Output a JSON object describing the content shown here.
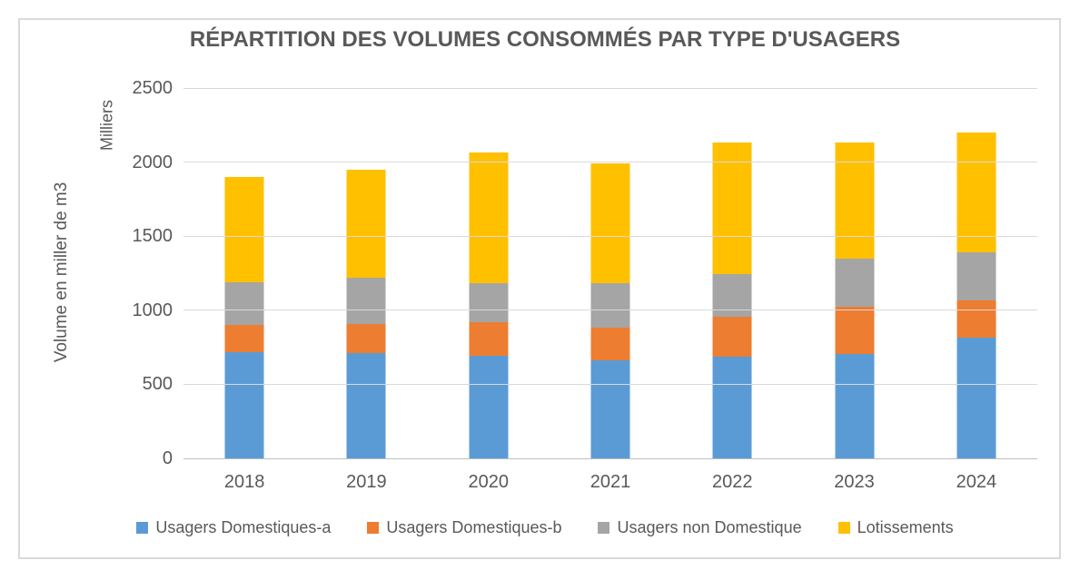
{
  "window": {
    "background": "#ffffff",
    "frame_border_color": "#d9d9d9",
    "text_color": "#595959",
    "gridline_color": "#d9d9d9",
    "axisline_color": "#bfbfbf"
  },
  "chart_data": {
    "type": "bar",
    "stacked": true,
    "title": "RÉPARTITION DES VOLUMES CONSOMMÉS PAR TYPE D'USAGERS",
    "xlabel": "",
    "ylabel": "Volume en miller de m3",
    "y_secondary_label": "Milliers",
    "categories": [
      "2018",
      "2019",
      "2020",
      "2021",
      "2022",
      "2023",
      "2024"
    ],
    "series": [
      {
        "name": "Usagers Domestiques-a",
        "color": "#5B9BD5",
        "values": [
          720,
          710,
          695,
          660,
          685,
          705,
          815
        ]
      },
      {
        "name": "Usagers Domestiques-b",
        "color": "#ED7D31",
        "values": [
          180,
          200,
          225,
          225,
          270,
          320,
          250
        ]
      },
      {
        "name": "Usagers non Domestique",
        "color": "#A5A5A5",
        "values": [
          290,
          310,
          260,
          295,
          290,
          325,
          325
        ]
      },
      {
        "name": "Lotissements",
        "color": "#FFC000",
        "values": [
          710,
          730,
          885,
          810,
          885,
          785,
          810
        ]
      }
    ],
    "stack_totals": [
      1900,
      1950,
      2065,
      1990,
      2130,
      2135,
      2200
    ],
    "ylim": [
      0,
      2500
    ],
    "ytick_interval": 500,
    "ytick_labels": [
      "0",
      "500",
      "1000",
      "1500",
      "2000",
      "2500"
    ],
    "grid": true,
    "legend_position": "bottom"
  }
}
